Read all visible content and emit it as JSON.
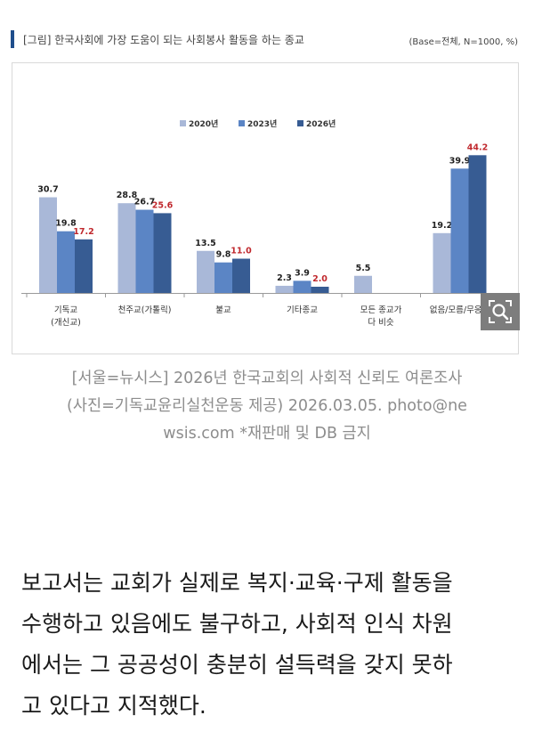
{
  "figure": {
    "title": "[그림] 한국사회에 가장 도움이 되는 사회봉사 활동을 하는 종교",
    "note": "(Base=전체, N=1000, %)"
  },
  "chart_data": {
    "type": "bar",
    "series": [
      {
        "name": "2020년",
        "color": "#a9b8d8",
        "values": [
          30.7,
          28.8,
          13.5,
          2.3,
          5.5,
          19.2
        ]
      },
      {
        "name": "2023년",
        "color": "#5b85c5",
        "values": [
          19.8,
          26.7,
          9.8,
          3.9,
          null,
          39.9
        ]
      },
      {
        "name": "2026년",
        "color": "#375c93",
        "values": [
          17.2,
          25.6,
          11.0,
          2.0,
          null,
          44.2
        ]
      }
    ],
    "categories": [
      [
        "기독교",
        "(개신교)"
      ],
      [
        "천주교(가톨릭)"
      ],
      [
        "불교"
      ],
      [
        "기타종교"
      ],
      [
        "모든 종교가",
        "다 비슷"
      ],
      [
        "없음/모름/무응답"
      ]
    ],
    "value_label_colors": {
      "default": "#222222",
      "latest": "#c0282d"
    },
    "legend_position": "top-center",
    "grid": false
  },
  "zoom": {
    "icon": "zoom-magnifier-icon"
  },
  "caption": {
    "line1": "[서울=뉴시스] 2026년 한국교회의 사회적 신뢰도 여론조사",
    "line2": "(사진=기독교윤리실천운동 제공) 2026.03.05. photo@ne",
    "line3": "wsis.com *재판매 및 DB 금지"
  },
  "article": {
    "line1": "보고서는 교회가 실제로 복지·교육·구제 활동을",
    "line2": "수행하고 있음에도 불구하고, 사회적 인식 차원",
    "line3": "에서는 그 공공성이 충분히 설득력을 갖지 못하",
    "line4": "고 있다고 지적했다."
  }
}
